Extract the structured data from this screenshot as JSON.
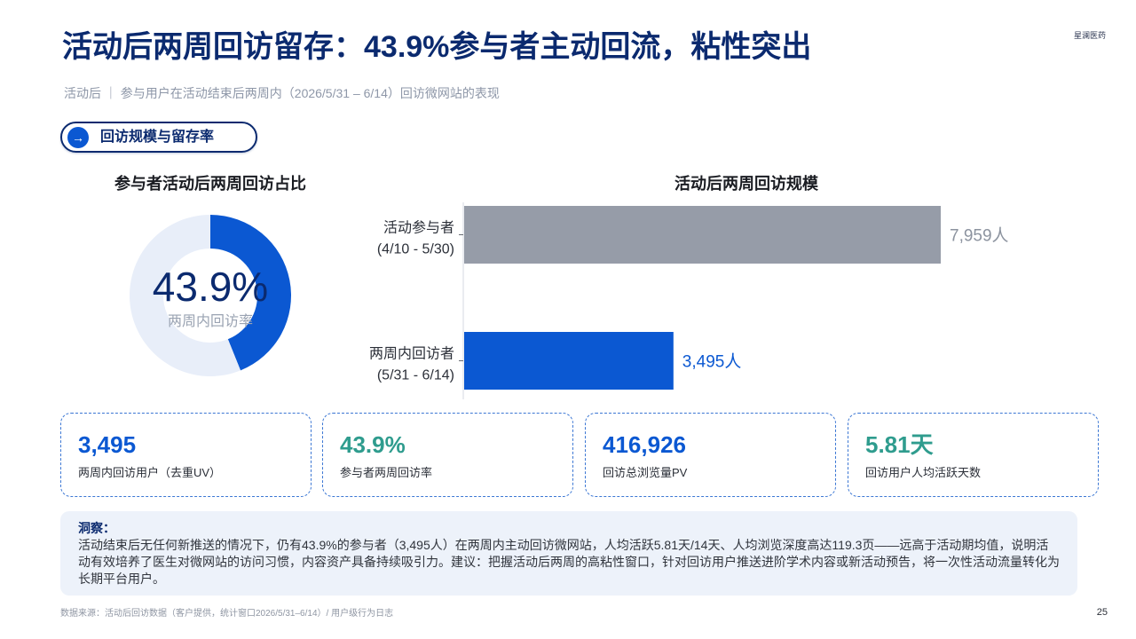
{
  "theme": {
    "navy": "#0B2A6F",
    "blue": "#0B58D2",
    "teal": "#2F9C8E"
  },
  "brand": "星澜医药",
  "title": "活动后两周回访留存：43.9%参与者主动回流，粘性突出",
  "subtitle": "活动后 ｜ 参与用户在活动结束后两周内（2026/5/31 – 6/14）回访微网站的表现",
  "section_tag": {
    "icon": "arrow-right-icon",
    "icon_glyph": "→",
    "label": "回访规模与留存率"
  },
  "chart_data": [
    {
      "type": "pie",
      "donut": true,
      "title": "参与者活动后两周回访占比",
      "values": [
        43.9,
        56.1
      ],
      "colors": [
        "#0B58D2",
        "#E8EEF9"
      ],
      "center_value": "43.9%",
      "center_label": "两周内回访率",
      "legend": "none"
    },
    {
      "type": "bar",
      "orientation": "horizontal",
      "title": "活动后两周回访规模",
      "categories": [
        "活动参与者",
        "两周内回访者"
      ],
      "category_periods": [
        "(4/10 - 5/30)",
        "(5/31 - 6/14)"
      ],
      "values": [
        7959,
        3495
      ],
      "value_labels": [
        "7,959人",
        "3,495人"
      ],
      "colors": [
        "#969CA8",
        "#0B58D2"
      ],
      "label_colors": [
        "#8C939F",
        "#0B58D2"
      ],
      "xlabel": "",
      "ylabel": "",
      "grid": false,
      "legend": "none"
    }
  ],
  "kpis": [
    {
      "value": "3,495",
      "label": "两周内回访用户（去重UV）",
      "color": "#0B58D2"
    },
    {
      "value": "43.9%",
      "label": "参与者两周回访率",
      "color": "#2F9C8E"
    },
    {
      "value": "416,926",
      "label": "回访总浏览量PV",
      "color": "#0B58D2"
    },
    {
      "value": "5.81天",
      "label": "回访用户人均活跃天数",
      "color": "#2F9C8E"
    }
  ],
  "insight": {
    "heading": "洞察：",
    "text": "活动结束后无任何新推送的情况下，仍有43.9%的参与者（3,495人）在两周内主动回访微网站，人均活跃5.81天/14天、人均浏览深度高达119.3页——远高于活动期均值，说明活动有效培养了医生对微网站的访问习惯，内容资产具备持续吸引力。建议：把握活动后两周的高粘性窗口，针对回访用户推送进阶学术内容或新活动预告，将一次性活动流量转化为长期平台用户。"
  },
  "footer": {
    "source": "数据来源：活动后回访数据（客户提供，统计窗口2026/5/31–6/14）/ 用户级行为日志",
    "page_number": "25"
  }
}
